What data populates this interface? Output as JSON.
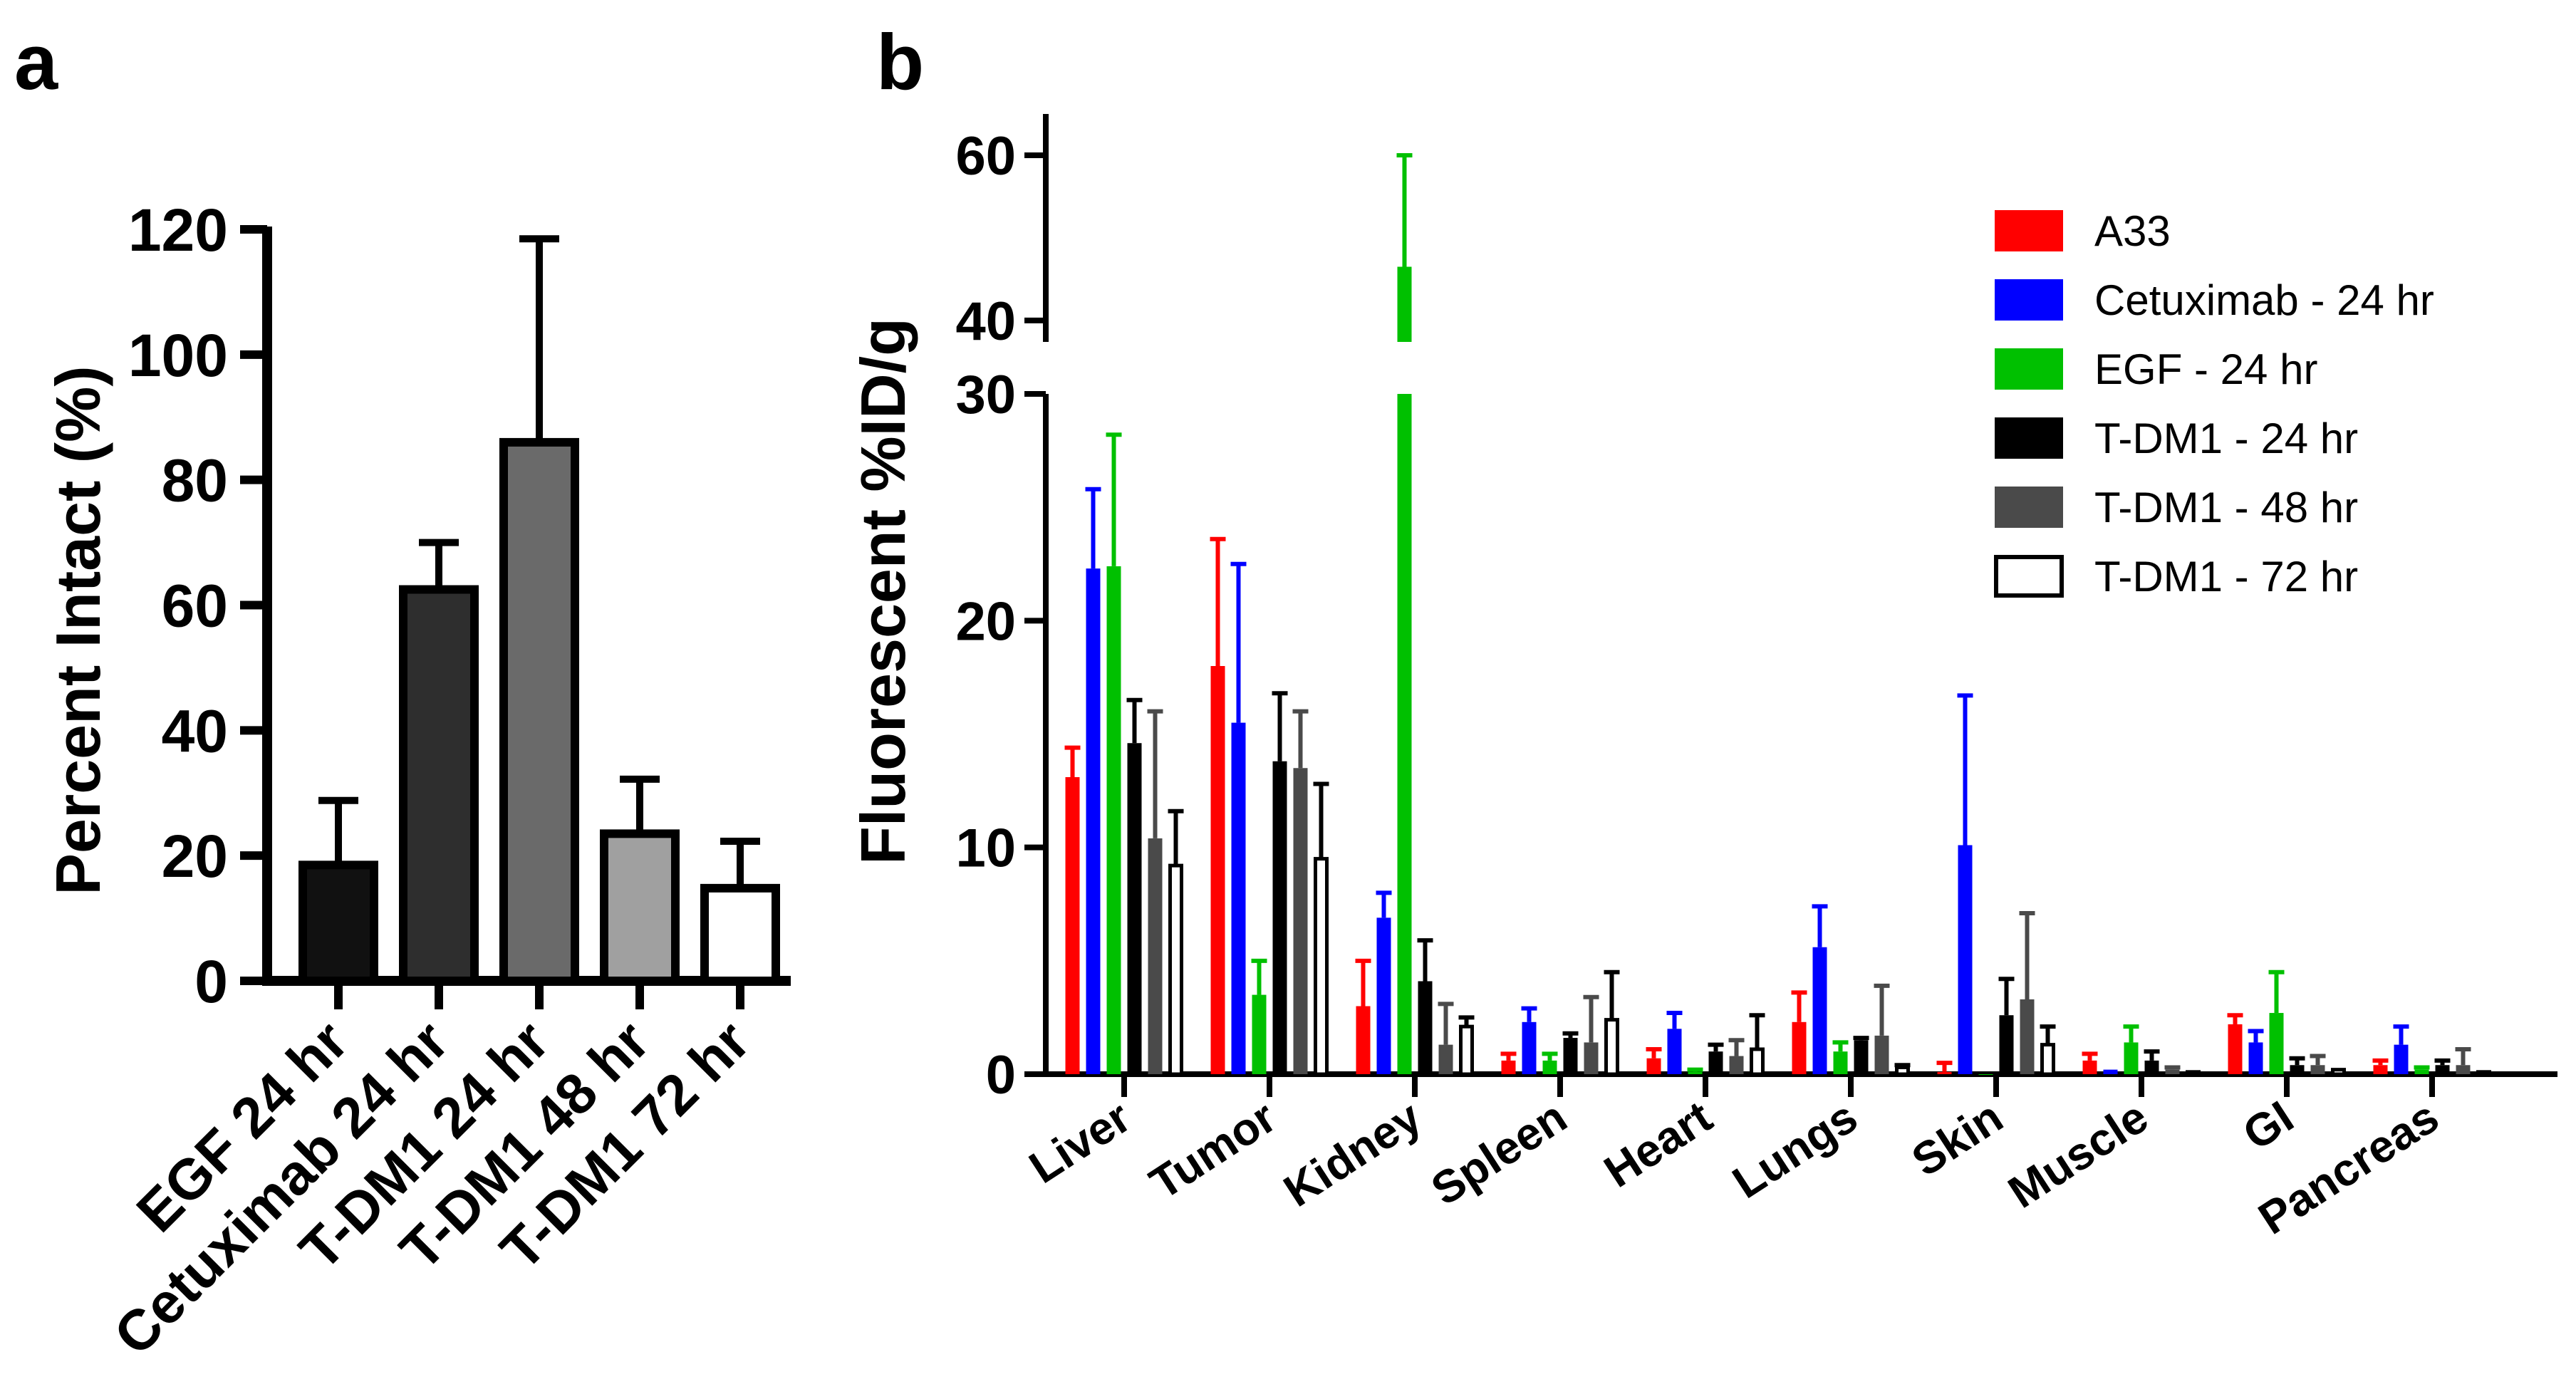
{
  "chart_data": [
    {
      "panel": "a",
      "type": "bar",
      "ylabel": "Percent Intact (%)",
      "xlabel": "",
      "ylim": [
        0,
        120
      ],
      "yticks": [
        0,
        20,
        40,
        60,
        80,
        100,
        120
      ],
      "categories": [
        "EGF 24 hr",
        "Cetuximab 24 hr",
        "T-DM1 24 hr",
        "T-DM1 48 hr",
        "T-DM1 72 hr"
      ],
      "values": [
        18.5,
        62.5,
        86,
        23.5,
        14.8
      ],
      "errors": [
        10.3,
        7.5,
        32.5,
        8.7,
        7.5
      ],
      "colors": [
        "#111111",
        "#2e2e2e",
        "#6a6a6a",
        "#a0a0a0",
        "#ffffff"
      ]
    },
    {
      "panel": "b",
      "type": "bar",
      "ylabel": "Fluorescent %ID/g",
      "xlabel": "",
      "axis_break": {
        "lower": [
          0,
          30
        ],
        "upper": [
          37.4,
          65
        ]
      },
      "yticks": [
        0,
        10,
        20,
        30,
        40,
        60
      ],
      "categories": [
        "Liver",
        "Tumor",
        "Kidney",
        "Spleen",
        "Heart",
        "Lungs",
        "Skin",
        "Muscle",
        "GI",
        "Pancreas"
      ],
      "legend_position": "top-right",
      "series": [
        {
          "name": "A33",
          "color": "#ff0000",
          "fill": "#ff0000",
          "values": [
            13.1,
            18.0,
            3.0,
            0.6,
            0.7,
            2.3,
            0.1,
            0.6,
            2.2,
            0.4
          ],
          "errors": [
            1.3,
            5.6,
            2.0,
            0.3,
            0.4,
            1.3,
            0.4,
            0.3,
            0.4,
            0.2
          ]
        },
        {
          "name": "Cetuximab - 24 hr",
          "color": "#0000ff",
          "fill": "#0000ff",
          "values": [
            22.3,
            15.5,
            6.9,
            2.3,
            2.0,
            5.6,
            10.1,
            0.2,
            1.4,
            1.3
          ],
          "errors": [
            3.5,
            7.0,
            1.1,
            0.6,
            0.7,
            1.8,
            6.6,
            0.0,
            0.5,
            0.8
          ]
        },
        {
          "name": "EGF - 24 hr",
          "color": "#00c000",
          "fill": "#00c000",
          "values": [
            22.4,
            3.5,
            46.5,
            0.6,
            0.1,
            1.0,
            0.0,
            1.4,
            2.7,
            0.2
          ],
          "errors": [
            5.8,
            1.5,
            13.5,
            0.3,
            0.1,
            0.4,
            0.0,
            0.7,
            1.8,
            0.1
          ]
        },
        {
          "name": "T-DM1 - 24 hr",
          "color": "#000000",
          "fill": "#000000",
          "values": [
            14.6,
            13.8,
            4.1,
            1.6,
            1.0,
            1.5,
            2.6,
            0.6,
            0.4,
            0.4
          ],
          "errors": [
            1.9,
            3.0,
            1.8,
            0.2,
            0.3,
            0.1,
            1.6,
            0.4,
            0.3,
            0.2
          ]
        },
        {
          "name": "T-DM1 - 48 hr",
          "color": "#4a4a4a",
          "fill": "#4a4a4a",
          "values": [
            10.4,
            13.5,
            1.3,
            1.4,
            0.8,
            1.7,
            3.3,
            0.2,
            0.4,
            0.4
          ],
          "errors": [
            5.6,
            2.5,
            1.8,
            2.0,
            0.7,
            2.2,
            3.8,
            0.1,
            0.4,
            0.7
          ]
        },
        {
          "name": "T-DM1 - 72 hr",
          "color": "#000000",
          "fill": "#ffffff",
          "values": [
            9.2,
            9.5,
            2.1,
            2.4,
            1.1,
            0.3,
            1.3,
            0.1,
            0.2,
            0.1
          ],
          "errors": [
            2.4,
            3.3,
            0.4,
            2.1,
            1.5,
            0.1,
            0.8,
            0.0,
            0.0,
            0.0
          ]
        }
      ]
    }
  ],
  "panel_labels": {
    "a": "a",
    "b": "b"
  }
}
